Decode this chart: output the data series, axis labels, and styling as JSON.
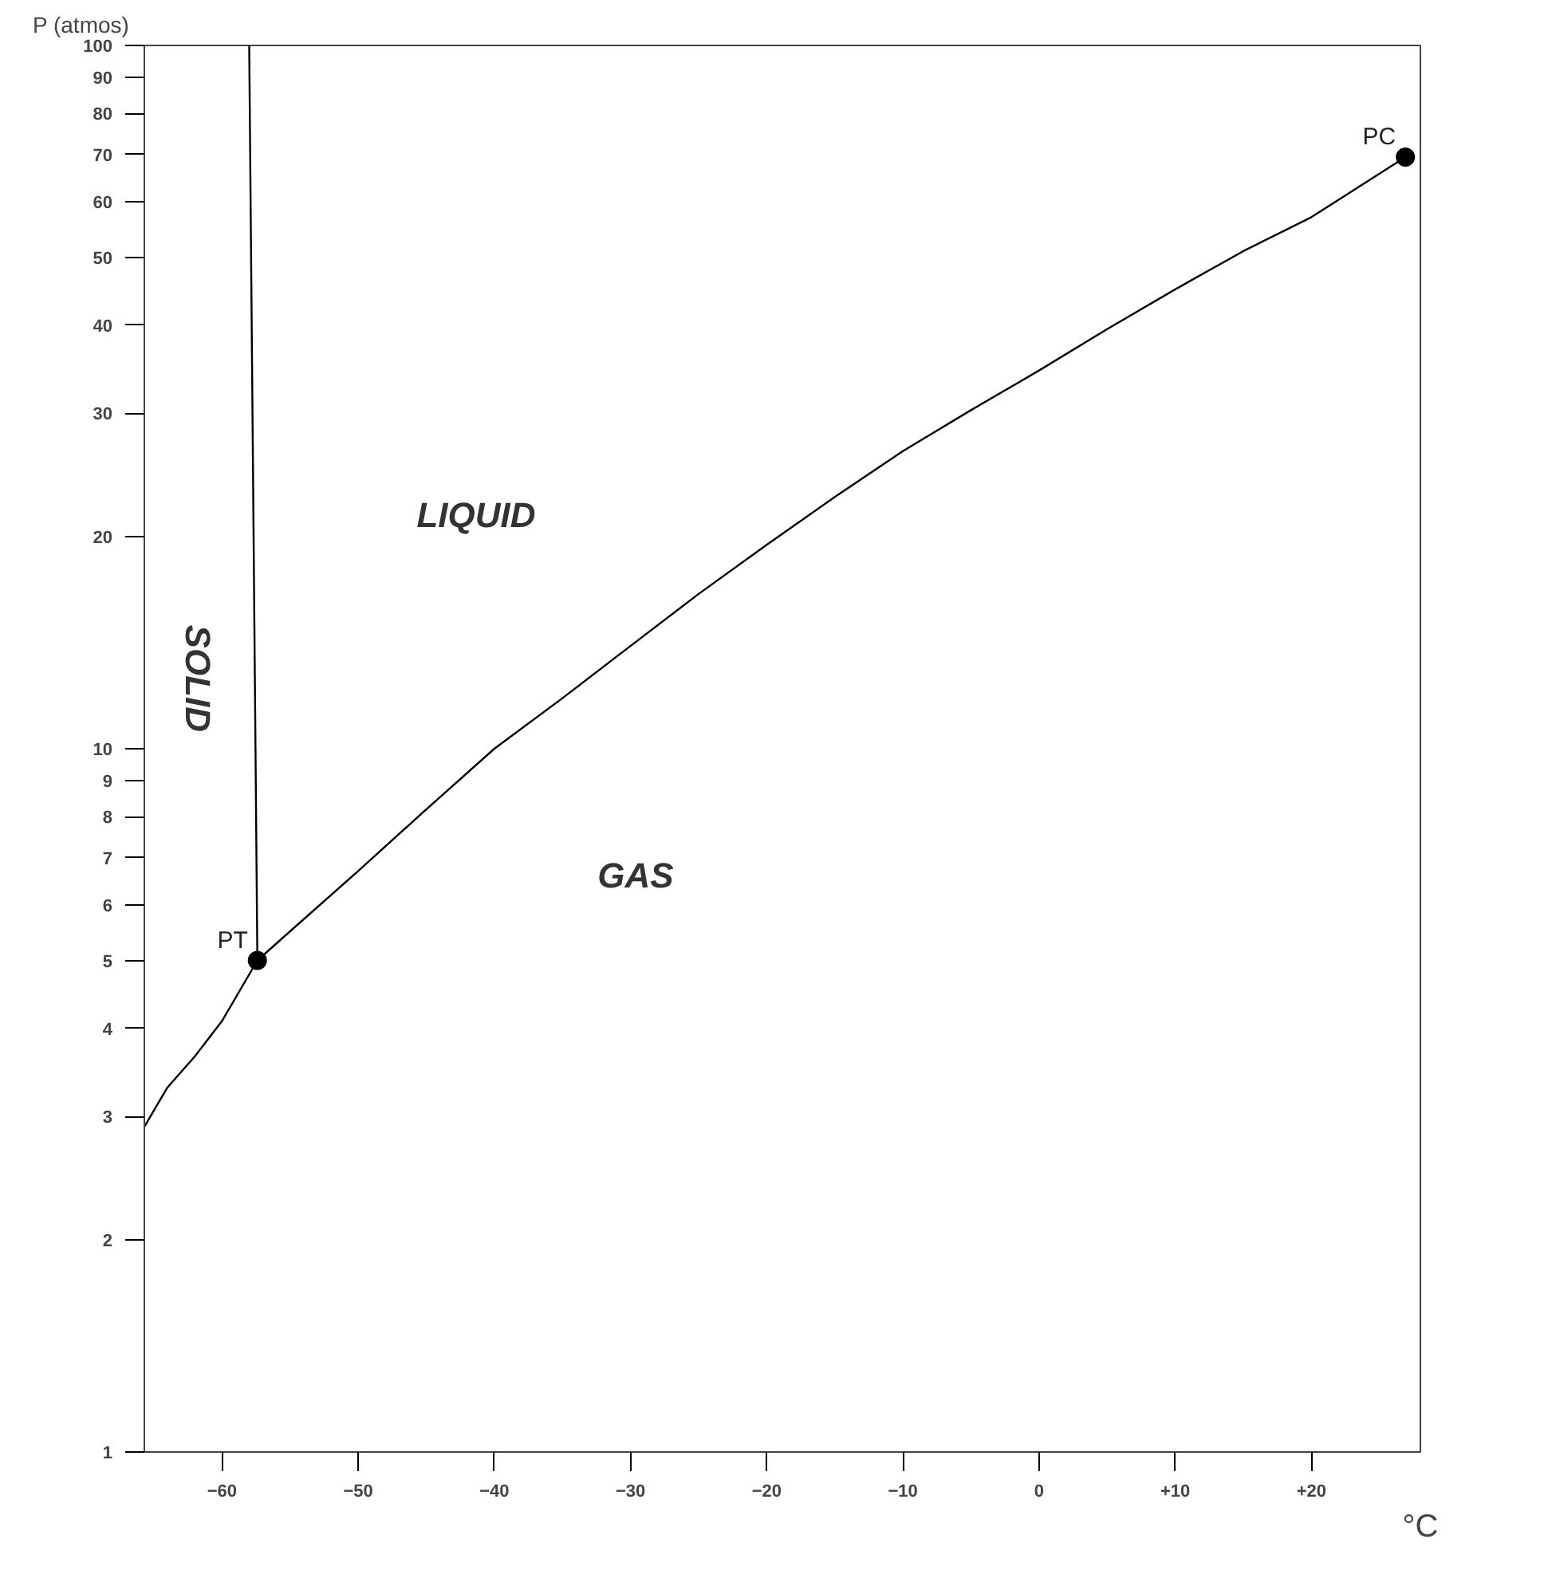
{
  "chart_data": {
    "type": "line",
    "xlabel": "°C",
    "ylabel": "P (atmos)",
    "log": "y",
    "grid": false,
    "xlim": [
      -65.7,
      28
    ],
    "ylim": [
      1,
      100
    ],
    "xticks": [
      -60,
      -50,
      -40,
      -30,
      -20,
      -10,
      0,
      {
        "value": 10,
        "label": "+10"
      },
      {
        "value": 20,
        "label": "+20"
      }
    ],
    "yticks": [
      1,
      2,
      3,
      4,
      5,
      6,
      7,
      8,
      9,
      10,
      20,
      30,
      40,
      50,
      60,
      70,
      80,
      90,
      100
    ],
    "series": [
      {
        "color": "#000000",
        "x": [
          -65.7,
          -64,
          -62,
          -60,
          -57.4,
          -55,
          -50,
          -45,
          -40,
          -35,
          -30,
          -25,
          -20,
          -15,
          -10,
          -5,
          0,
          5,
          10,
          15,
          20,
          26.9
        ],
        "values": [
          2.9,
          3.3,
          3.65,
          4.1,
          5.0,
          5.5,
          6.7,
          8.2,
          10,
          11.8,
          14,
          16.6,
          19.5,
          22.8,
          26.5,
          30.3,
          34.5,
          39.5,
          45,
          51,
          57,
          69.4
        ]
      },
      {
        "color": "#000000",
        "x": [
          -57.4,
          -58.0
        ],
        "values": [
          5.0,
          100
        ]
      },
      {
        "type": "scatter",
        "name": "PT",
        "color": "#000000",
        "marker": "circle",
        "x": [
          -57.4
        ],
        "values": [
          5.0
        ]
      },
      {
        "type": "scatter",
        "name": "PC",
        "color": "#000000",
        "marker": "circle",
        "x": [
          26.9
        ],
        "values": [
          69.4
        ]
      }
    ],
    "annotations": [
      "SOLID",
      "LIQUID",
      "GAS"
    ]
  }
}
